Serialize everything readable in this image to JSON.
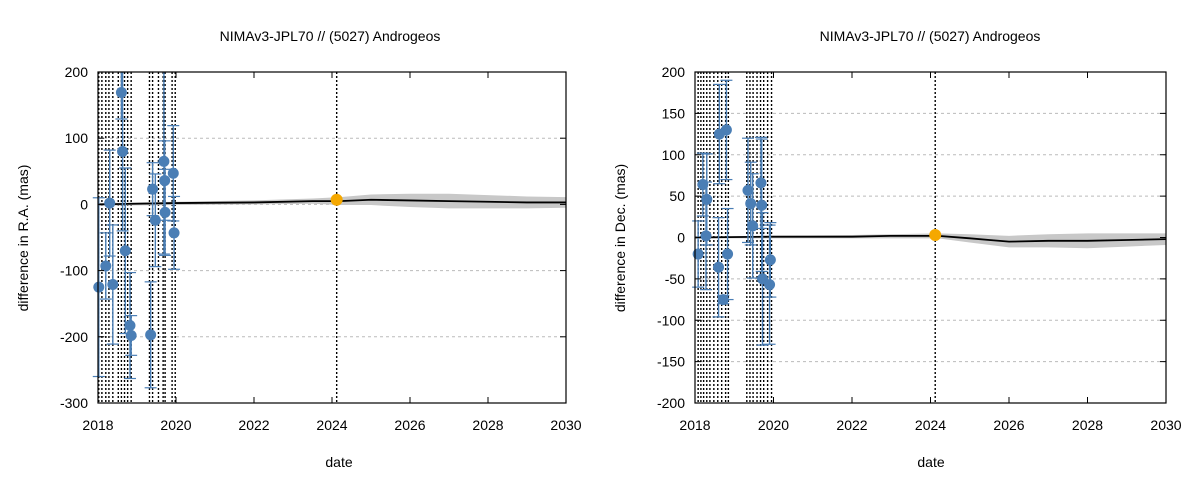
{
  "chart_data": [
    {
      "type": "scatter",
      "title": "NIMAv3-JPL70 // (5027) Androgeos",
      "xlabel": "date",
      "ylabel": "difference in R.A. (mas)",
      "xlim": [
        2018,
        2030
      ],
      "ylim": [
        -300,
        200
      ],
      "x_ticks": [
        "2018",
        "2020",
        "2022",
        "2024",
        "2026",
        "2028",
        "2030"
      ],
      "y_ticks": [
        "-300",
        "-200",
        "-100",
        "0",
        "100",
        "200"
      ],
      "y_tick_values": [
        -300,
        -200,
        -100,
        0,
        100,
        200
      ],
      "grid": true,
      "colors": {
        "observations": "#4a7eb5",
        "reference": "#f5a800",
        "ephemeris": "#000000",
        "uncertainty": "#c8c8c8"
      },
      "observation_epochs": [
        2018.02,
        2018.1,
        2018.2,
        2018.28,
        2018.38,
        2018.52,
        2018.6,
        2018.68,
        2018.76,
        2018.85,
        2019.32,
        2019.4,
        2019.55,
        2019.67,
        2019.72,
        2019.9,
        2019.98,
        2024.12
      ],
      "observations": [
        {
          "x": 2018.02,
          "y": -125,
          "err": 135
        },
        {
          "x": 2018.2,
          "y": -93,
          "err": 50
        },
        {
          "x": 2018.3,
          "y": 2,
          "err": 80
        },
        {
          "x": 2018.38,
          "y": -121,
          "err": 90
        },
        {
          "x": 2018.6,
          "y": 169,
          "err": 40
        },
        {
          "x": 2018.63,
          "y": 80,
          "err": 120
        },
        {
          "x": 2018.7,
          "y": -70,
          "err": 125
        },
        {
          "x": 2018.82,
          "y": -183,
          "err": 80
        },
        {
          "x": 2018.85,
          "y": -198,
          "err": 30
        },
        {
          "x": 2019.35,
          "y": -197,
          "err": 80
        },
        {
          "x": 2019.4,
          "y": 23,
          "err": 40
        },
        {
          "x": 2019.47,
          "y": -24,
          "err": 70
        },
        {
          "x": 2019.69,
          "y": 65,
          "err": 140
        },
        {
          "x": 2019.71,
          "y": 36,
          "err": 60
        },
        {
          "x": 2019.72,
          "y": -12,
          "err": 65
        },
        {
          "x": 2019.93,
          "y": 47,
          "err": 72
        },
        {
          "x": 2019.95,
          "y": -43,
          "err": 55
        }
      ],
      "reference_point": {
        "x": 2024.12,
        "y": 7
      },
      "ephemeris": [
        [
          2018.0,
          0
        ],
        [
          2020.0,
          2
        ],
        [
          2022.0,
          3
        ],
        [
          2023.5,
          5
        ],
        [
          2024.2,
          5
        ],
        [
          2025.0,
          7
        ],
        [
          2026.0,
          6
        ],
        [
          2027.0,
          5
        ],
        [
          2028.0,
          4
        ],
        [
          2029.0,
          3
        ],
        [
          2030.0,
          3
        ]
      ],
      "uncertainty_band": [
        [
          2018.0,
          2
        ],
        [
          2022.0,
          3
        ],
        [
          2023.5,
          4
        ],
        [
          2024.2,
          6
        ],
        [
          2025.0,
          8
        ],
        [
          2026.0,
          10
        ],
        [
          2027.0,
          11
        ],
        [
          2028.0,
          10
        ],
        [
          2029.0,
          9
        ],
        [
          2030.0,
          8
        ]
      ]
    },
    {
      "type": "scatter",
      "title": "NIMAv3-JPL70 // (5027) Androgeos",
      "xlabel": "date",
      "ylabel": "difference in Dec. (mas)",
      "xlim": [
        2018,
        2030
      ],
      "ylim": [
        -200,
        200
      ],
      "x_ticks": [
        "2018",
        "2020",
        "2022",
        "2024",
        "2026",
        "2028",
        "2030"
      ],
      "y_ticks": [
        "-200",
        "-150",
        "-100",
        "-50",
        "0",
        "50",
        "100",
        "150",
        "200"
      ],
      "y_tick_values": [
        -200,
        -150,
        -100,
        -50,
        0,
        50,
        100,
        150,
        200
      ],
      "grid": true,
      "colors": {
        "observations": "#4a7eb5",
        "reference": "#f5a800",
        "ephemeris": "#000000",
        "uncertainty": "#c8c8c8"
      },
      "observation_epochs": [
        2018.08,
        2018.15,
        2018.22,
        2018.3,
        2018.38,
        2018.48,
        2018.58,
        2018.68,
        2018.78,
        2018.85,
        2019.32,
        2019.4,
        2019.48,
        2019.58,
        2019.67,
        2019.75,
        2019.85,
        2019.95,
        2024.12
      ],
      "observations": [
        {
          "x": 2018.08,
          "y": -20,
          "err": 40
        },
        {
          "x": 2018.2,
          "y": 64,
          "err": 38
        },
        {
          "x": 2018.28,
          "y": 2,
          "err": 65
        },
        {
          "x": 2018.3,
          "y": 46,
          "err": 55
        },
        {
          "x": 2018.6,
          "y": -36,
          "err": 60
        },
        {
          "x": 2018.62,
          "y": 125,
          "err": 60
        },
        {
          "x": 2018.72,
          "y": -75,
          "err": 5
        },
        {
          "x": 2018.8,
          "y": 130,
          "err": 60
        },
        {
          "x": 2018.83,
          "y": -20,
          "err": 55
        },
        {
          "x": 2019.35,
          "y": 57,
          "err": 63
        },
        {
          "x": 2019.42,
          "y": 41,
          "err": 50
        },
        {
          "x": 2019.47,
          "y": 14,
          "err": 63
        },
        {
          "x": 2019.68,
          "y": 66,
          "err": 55
        },
        {
          "x": 2019.7,
          "y": 39,
          "err": 80
        },
        {
          "x": 2019.72,
          "y": -50,
          "err": 80
        },
        {
          "x": 2019.9,
          "y": -57,
          "err": 72
        },
        {
          "x": 2019.92,
          "y": -27,
          "err": 45
        }
      ],
      "reference_point": {
        "x": 2024.12,
        "y": 3
      },
      "ephemeris": [
        [
          2018.0,
          0
        ],
        [
          2020.0,
          1
        ],
        [
          2022.0,
          1
        ],
        [
          2023.0,
          2
        ],
        [
          2024.2,
          2
        ],
        [
          2025.0,
          -1
        ],
        [
          2025.5,
          -3
        ],
        [
          2026.0,
          -5
        ],
        [
          2027.0,
          -4
        ],
        [
          2028.0,
          -4
        ],
        [
          2029.0,
          -3
        ],
        [
          2030.0,
          -2
        ]
      ],
      "uncertainty_band": [
        [
          2018.0,
          1
        ],
        [
          2022.0,
          2
        ],
        [
          2024.2,
          3
        ],
        [
          2025.0,
          5
        ],
        [
          2026.0,
          7
        ],
        [
          2027.0,
          8
        ],
        [
          2028.0,
          9
        ],
        [
          2029.0,
          8
        ],
        [
          2030.0,
          7
        ]
      ]
    }
  ]
}
